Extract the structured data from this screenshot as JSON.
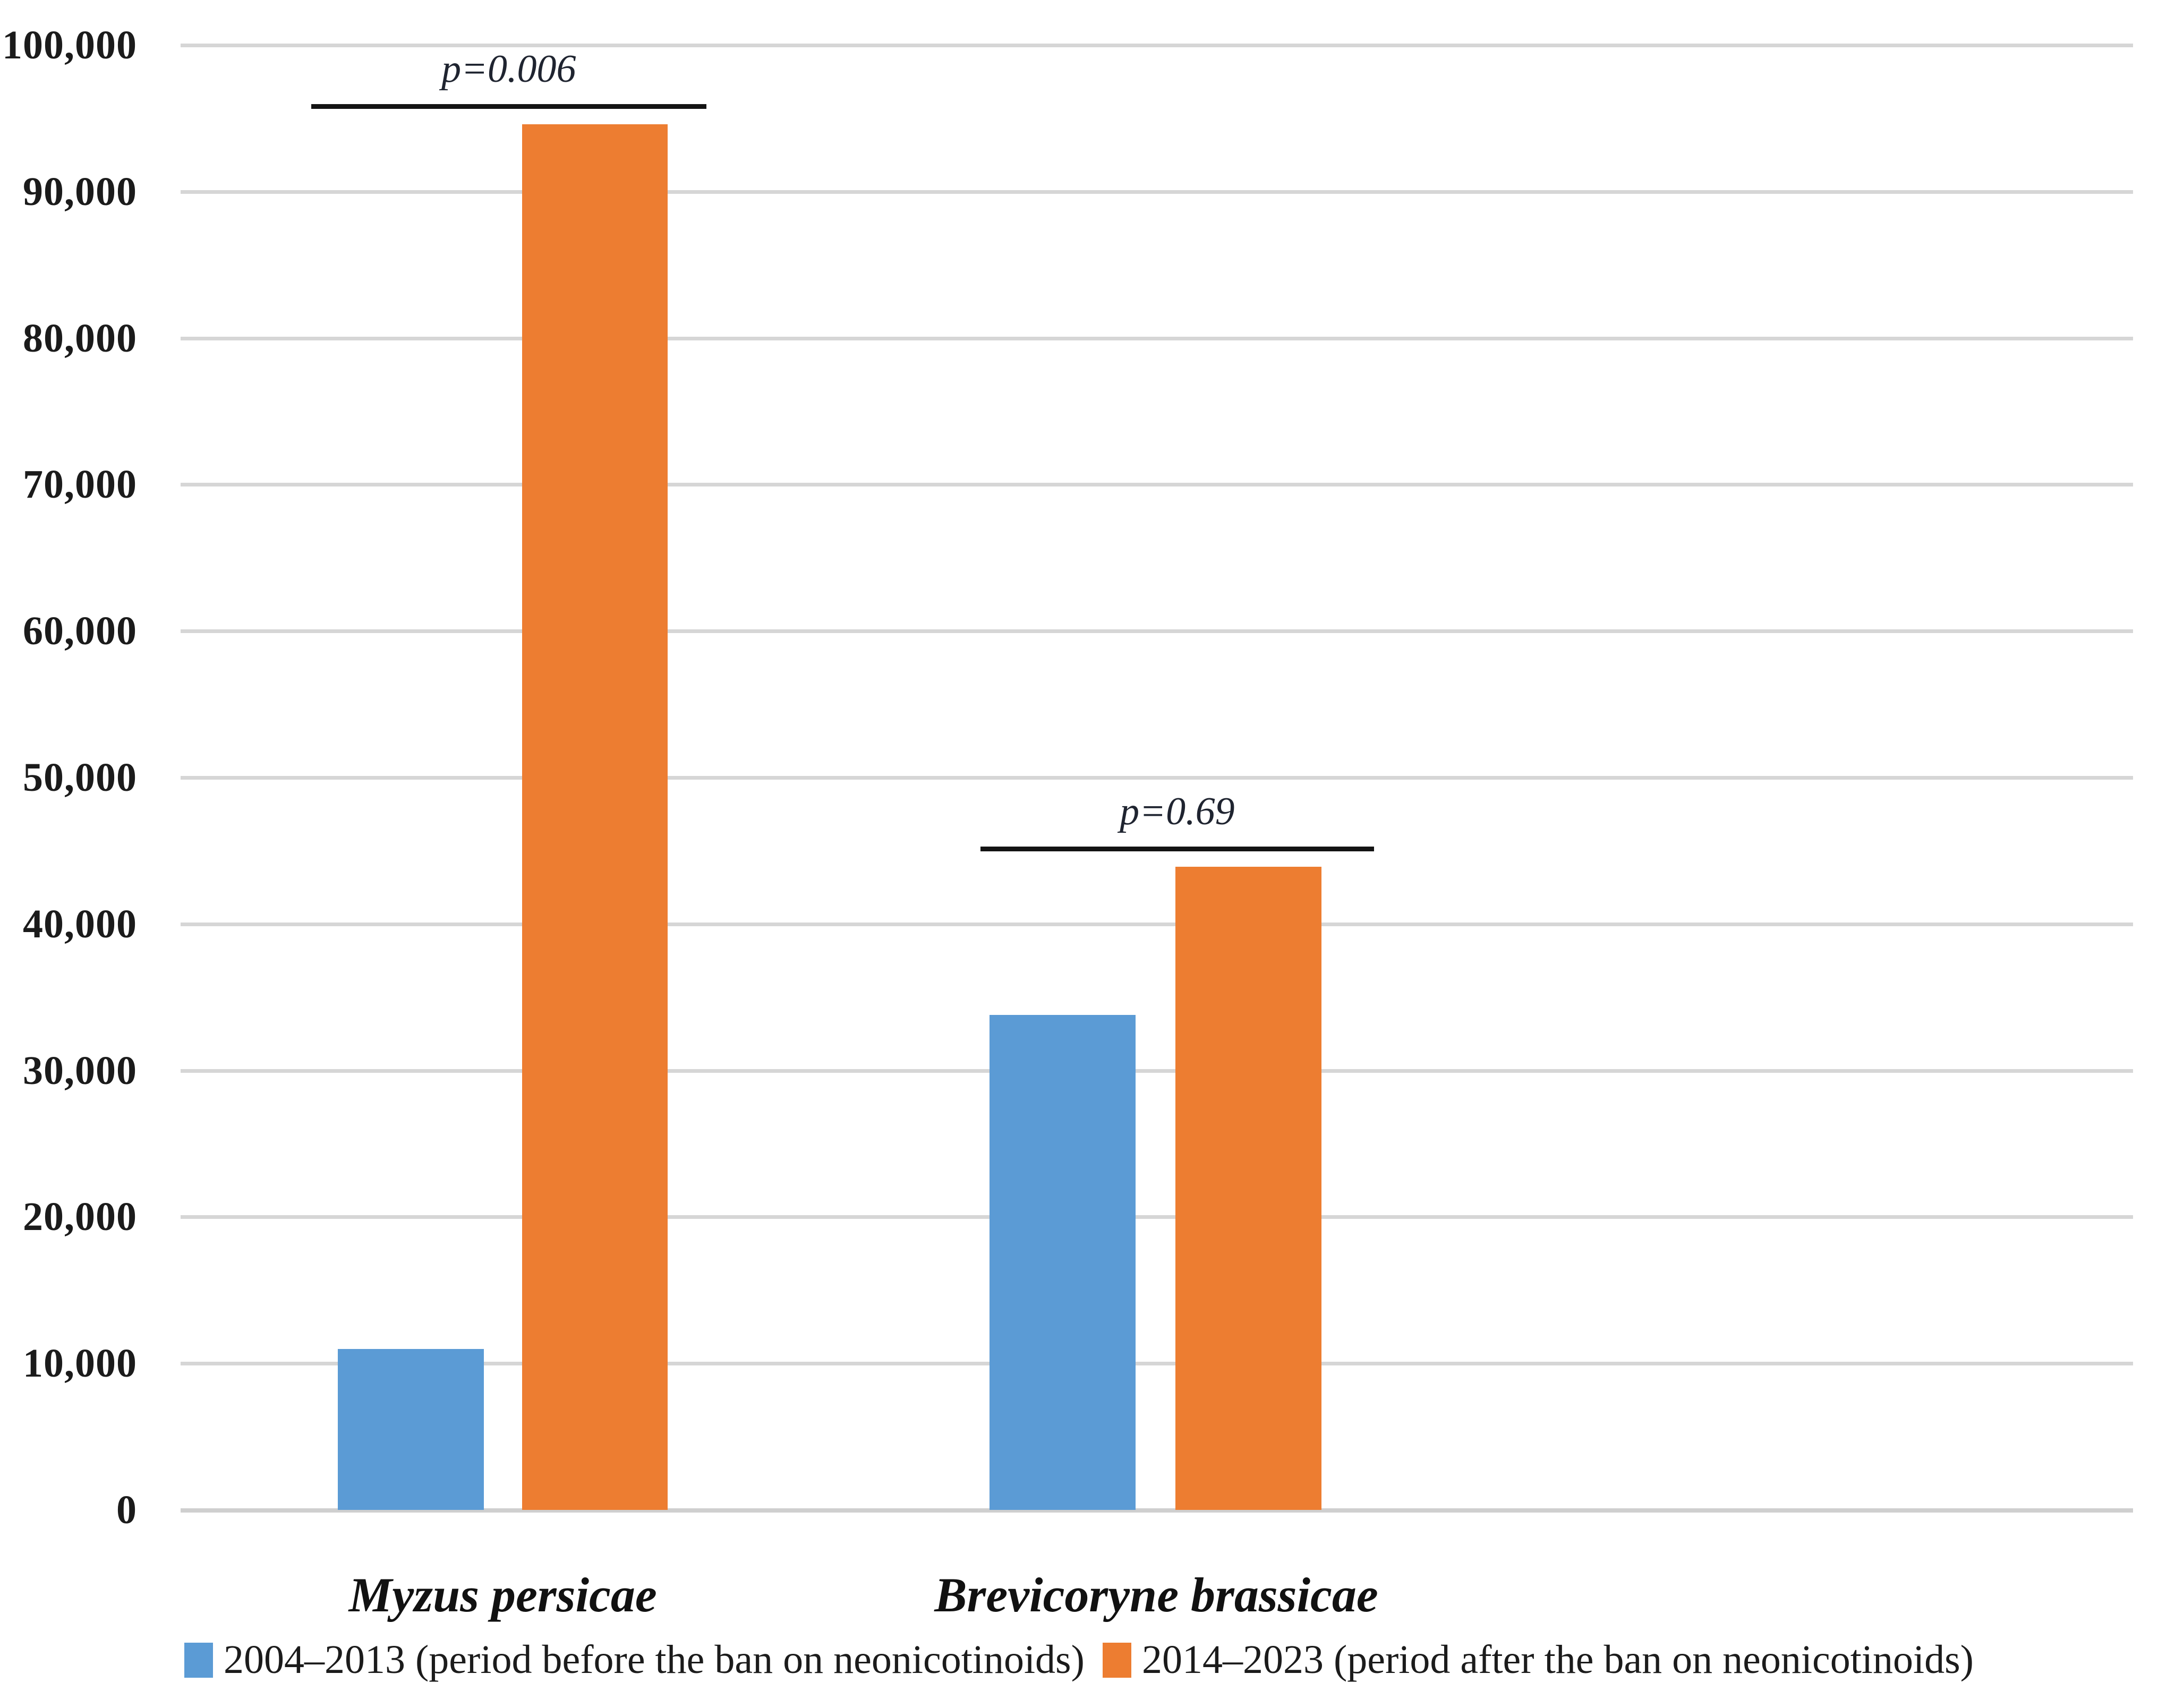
{
  "chart_data": {
    "type": "bar",
    "title": "",
    "xlabel": "",
    "ylabel": "",
    "categories": [
      "Myzus persicae",
      "Brevicoryne brassicae"
    ],
    "series": [
      {
        "name": "2004–2013 (period before the ban on neonicotinoids)",
        "color": "#5B9BD5",
        "values": [
          11000,
          33800
        ]
      },
      {
        "name": "2014–2023 (period after the ban on neonicotinoids)",
        "color": "#ED7D31",
        "values": [
          94600,
          43900
        ]
      }
    ],
    "annotations": [
      {
        "label": "p=0.006",
        "category": "Myzus persicae"
      },
      {
        "label": "p=0.69",
        "category": "Brevicoryne brassicae"
      }
    ],
    "ylim": [
      0,
      100000
    ],
    "yticks": [
      "0",
      "10,000",
      "20,000",
      "30,000",
      "40,000",
      "50,000",
      "60,000",
      "70,000",
      "80,000",
      "90,000",
      "100,000"
    ],
    "grid": true,
    "legend_position": "bottom",
    "colors": {
      "gridline": "#D6D6D6",
      "axis_text": "#1B1B1B",
      "annotation_line": "#141414"
    }
  }
}
